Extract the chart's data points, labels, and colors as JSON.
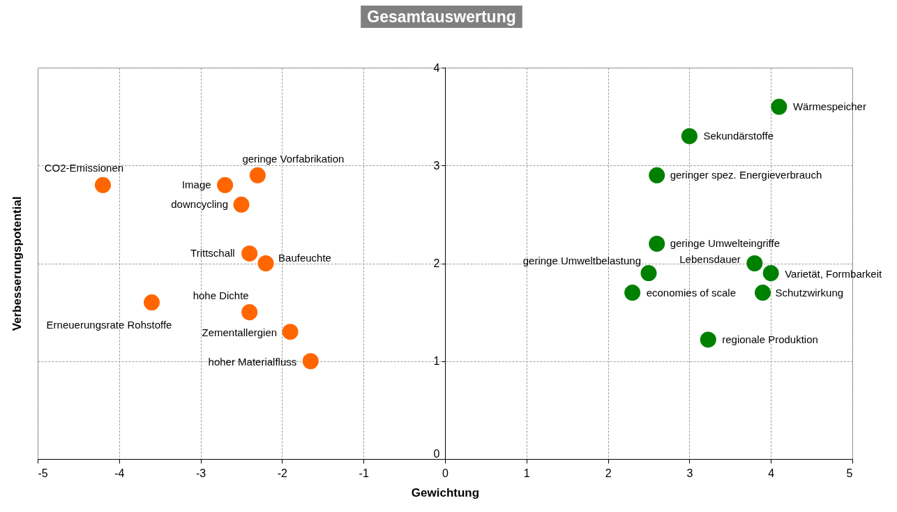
{
  "chart_data": {
    "type": "scatter",
    "title": "Gesamtauswertung",
    "xlabel": "Gewichtung",
    "ylabel": "Verbesserungspotential",
    "xlim": [
      -5,
      5
    ],
    "ylim": [
      0,
      4
    ],
    "xticks": [
      -5,
      -4,
      -3,
      -2,
      -1,
      0,
      1,
      2,
      3,
      4,
      5
    ],
    "yticks": [
      0,
      1,
      2,
      3,
      4
    ],
    "grid": true,
    "marker": "circle",
    "series": [
      {
        "color": "#ff6600",
        "x": [
          -4.2,
          -2.7,
          -2.3,
          -2.5,
          -2.4,
          -2.2,
          -3.6,
          -2.4,
          -1.9,
          -1.65
        ],
        "values": [
          2.8,
          2.8,
          2.9,
          2.6,
          2.1,
          2.0,
          1.6,
          1.5,
          1.3,
          1.0
        ]
      },
      {
        "color": "#008000",
        "x": [
          4.1,
          3.0,
          2.6,
          2.6,
          3.8,
          4.0,
          2.5,
          2.3,
          3.9,
          3.23
        ],
        "values": [
          3.6,
          3.3,
          2.9,
          2.2,
          2.0,
          1.9,
          1.9,
          1.7,
          1.7,
          1.22
        ]
      }
    ],
    "annotations": [
      {
        "text": "CO2-Emissionen",
        "x": -4.2,
        "y": 2.8
      },
      {
        "text": "Image",
        "x": -2.7,
        "y": 2.8
      },
      {
        "text": "geringe Vorfabrikation",
        "x": -2.3,
        "y": 2.9
      },
      {
        "text": "downcycling",
        "x": -2.5,
        "y": 2.6
      },
      {
        "text": "Trittschall",
        "x": -2.4,
        "y": 2.1
      },
      {
        "text": "Baufeuchte",
        "x": -2.2,
        "y": 2.0
      },
      {
        "text": "Erneuerungsrate Rohstoffe",
        "x": -3.6,
        "y": 1.6
      },
      {
        "text": "hohe Dichte",
        "x": -2.4,
        "y": 1.5
      },
      {
        "text": "Zementallergien",
        "x": -1.9,
        "y": 1.3
      },
      {
        "text": "hoher Materialfluss",
        "x": -1.65,
        "y": 1.0
      },
      {
        "text": "Wärmespeicher",
        "x": 4.1,
        "y": 3.6
      },
      {
        "text": "Sekundärstoffe",
        "x": 3.0,
        "y": 3.3
      },
      {
        "text": "geringer spez. Energieverbrauch",
        "x": 2.6,
        "y": 2.9
      },
      {
        "text": "geringe Umwelteingriffe",
        "x": 2.6,
        "y": 2.2
      },
      {
        "text": "Lebensdauer",
        "x": 3.8,
        "y": 2.0
      },
      {
        "text": "Varietät, Formbarkeit",
        "x": 4.0,
        "y": 1.9
      },
      {
        "text": "geringe Umweltbelastung",
        "x": 2.5,
        "y": 1.9
      },
      {
        "text": "economies of scale",
        "x": 2.3,
        "y": 1.7
      },
      {
        "text": "Schutzwirkung",
        "x": 3.9,
        "y": 1.7
      },
      {
        "text": "regionale Produktion",
        "x": 3.23,
        "y": 1.22
      }
    ]
  }
}
